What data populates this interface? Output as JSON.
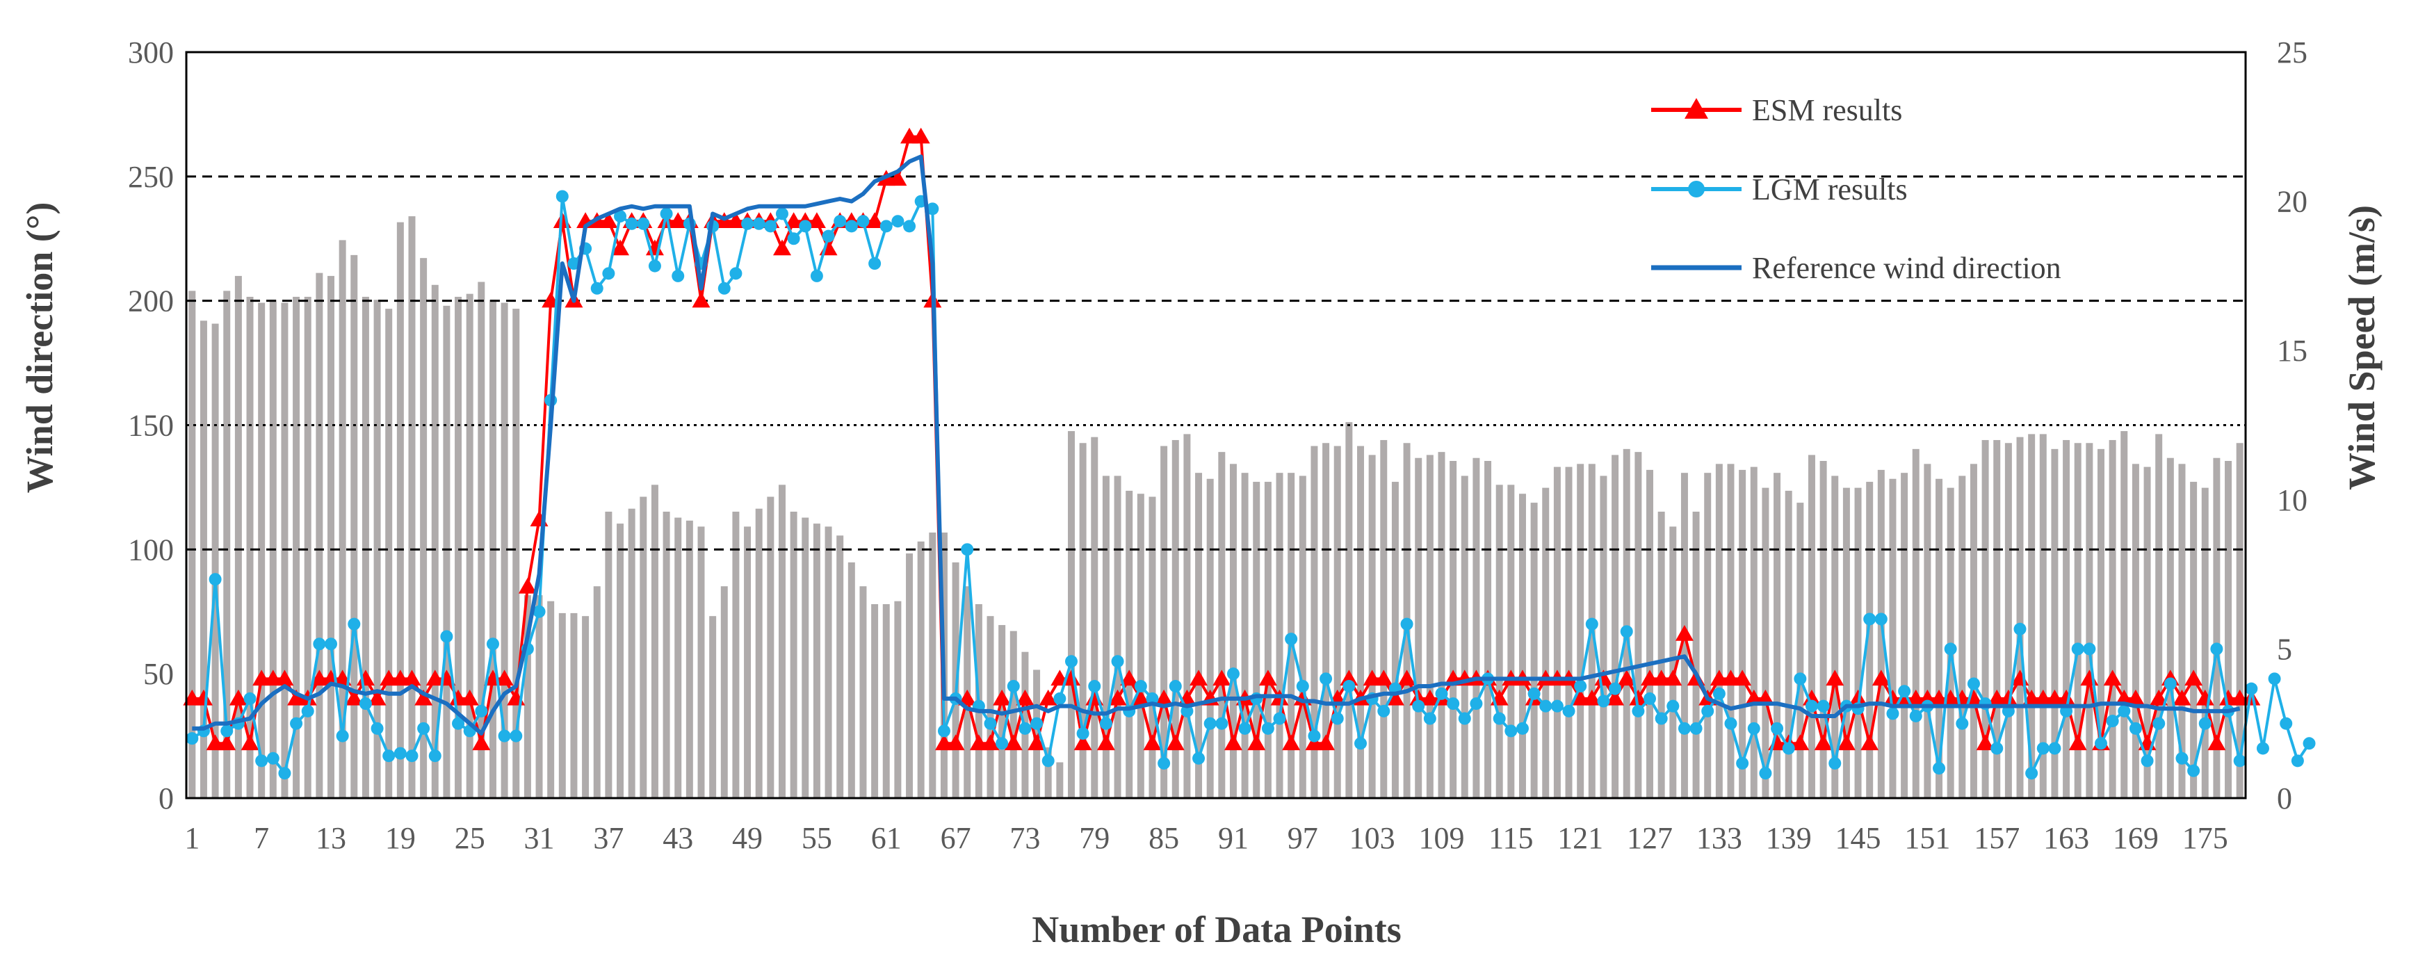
{
  "chart_data": {
    "type": "line",
    "title": "",
    "xlabel": "Number of Data Points",
    "ylabel_left": "Wind direction (°)",
    "ylabel_right": "Wind Speed (m/s)",
    "y_left_lim": [
      0,
      300
    ],
    "y_left_ticks": [
      0,
      50,
      100,
      150,
      200,
      250,
      300
    ],
    "y_right_lim": [
      0,
      25
    ],
    "y_right_ticks": [
      0,
      5,
      10,
      15,
      20,
      25
    ],
    "x_lim": [
      1,
      178
    ],
    "x_ticks": [
      1,
      7,
      13,
      19,
      25,
      31,
      37,
      43,
      49,
      55,
      61,
      67,
      73,
      79,
      85,
      91,
      97,
      103,
      109,
      115,
      121,
      127,
      133,
      139,
      145,
      151,
      157,
      163,
      169,
      175
    ],
    "gridlines": [
      {
        "value": 100,
        "style": "dashed"
      },
      {
        "value": 150,
        "style": "dotted"
      },
      {
        "value": 200,
        "style": "dashed"
      },
      {
        "value": 250,
        "style": "dashed"
      }
    ],
    "legend_position": "top-right",
    "colors": {
      "bars": "#afabab",
      "esm": "#ff0000",
      "lgm": "#1fb0e8",
      "reference": "#1b6fc1",
      "frame": "#000000"
    },
    "bars": {
      "name": "Wind speed",
      "axis": "right",
      "values": [
        17,
        16,
        15.9,
        17,
        17.5,
        16.8,
        16.6,
        16.7,
        16.6,
        16.8,
        16.8,
        17.6,
        17.5,
        18.7,
        18.2,
        16.8,
        16.7,
        16.4,
        19.3,
        19.5,
        18.1,
        17.2,
        16.5,
        16.8,
        16.9,
        17.3,
        16.7,
        16.6,
        16.4,
        6.8,
        6.8,
        6.6,
        6.2,
        6.2,
        6.1,
        7.1,
        9.6,
        9.2,
        9.7,
        10.1,
        10.5,
        9.6,
        9.4,
        9.3,
        9.1,
        6.1,
        7.1,
        9.6,
        9.1,
        9.7,
        10.1,
        10.5,
        9.6,
        9.4,
        9.2,
        9.1,
        8.8,
        7.9,
        7.1,
        6.5,
        6.5,
        6.6,
        8.2,
        8.6,
        8.9,
        8.9,
        7.9,
        7.1,
        6.5,
        6.1,
        5.8,
        5.6,
        4.9,
        4.3,
        1.7,
        1.2,
        12.3,
        11.9,
        12.1,
        10.8,
        10.8,
        10.3,
        10.2,
        10.1,
        11.8,
        12,
        12.2,
        10.9,
        10.7,
        11.6,
        11.2,
        10.9,
        10.6,
        10.6,
        10.9,
        10.9,
        10.8,
        11.8,
        11.9,
        11.8,
        12.6,
        11.8,
        11.5,
        12,
        10.6,
        11.9,
        11.4,
        11.5,
        11.6,
        11.3,
        10.8,
        11.4,
        11.3,
        10.5,
        10.5,
        10.2,
        9.9,
        10.4,
        11.1,
        11.1,
        11.2,
        11.2,
        10.8,
        11.5,
        11.7,
        11.6,
        11,
        9.6,
        9.1,
        10.9,
        9.6,
        10.9,
        11.2,
        11.2,
        11,
        11.1,
        10.4,
        10.9,
        10.3,
        9.9,
        11.5,
        11.3,
        10.8,
        10.4,
        10.4,
        10.6,
        11,
        10.7,
        10.9,
        11.7,
        11.2,
        10.7,
        10.4,
        10.8,
        11.2,
        12,
        12,
        11.9,
        12.1,
        12.2,
        12.2,
        11.7,
        12,
        11.9,
        11.9,
        11.7,
        12,
        12.3,
        11.2,
        11.1,
        12.2,
        11.4,
        11.2,
        10.6,
        10.4,
        11.4,
        11.3,
        11.9
      ]
    },
    "series": [
      {
        "name": "ESM results",
        "axis": "left",
        "marker": "triangle",
        "values": [
          40,
          40,
          22,
          22,
          40,
          22,
          48,
          48,
          48,
          40,
          40,
          48,
          48,
          48,
          40,
          48,
          40,
          48,
          48,
          48,
          40,
          48,
          48,
          40,
          40,
          22,
          48,
          48,
          40,
          85,
          112,
          200,
          232,
          200,
          232,
          232,
          232,
          221,
          232,
          232,
          221,
          232,
          232,
          232,
          200,
          232,
          232,
          232,
          232,
          232,
          232,
          221,
          232,
          232,
          232,
          221,
          232,
          232,
          232,
          232,
          249,
          249,
          266,
          266,
          200,
          22,
          22,
          40,
          22,
          22,
          40,
          22,
          40,
          22,
          40,
          48,
          48,
          22,
          40,
          22,
          40,
          48,
          40,
          22,
          40,
          22,
          40,
          48,
          40,
          48,
          22,
          40,
          22,
          48,
          40,
          22,
          40,
          22,
          22,
          40,
          48,
          40,
          48,
          48,
          40,
          48,
          40,
          40,
          40,
          48,
          48,
          48,
          48,
          40,
          48,
          48,
          40,
          48,
          48,
          48,
          40,
          40,
          48,
          40,
          48,
          40,
          48,
          48,
          48,
          66,
          48,
          40,
          48,
          48,
          48,
          40,
          40,
          22,
          22,
          22,
          40,
          22,
          48,
          22,
          40,
          22,
          48,
          40,
          40,
          40,
          40,
          40,
          40,
          40,
          40,
          22,
          40,
          40,
          48,
          40,
          40,
          40,
          40,
          22,
          48,
          22,
          48,
          40,
          40,
          22,
          40,
          48,
          40,
          48,
          40,
          22,
          40,
          40,
          40
        ]
      },
      {
        "name": "LGM results",
        "axis": "left",
        "marker": "circle",
        "values": [
          24,
          27,
          88,
          27,
          30,
          40,
          15,
          16,
          10,
          30,
          35,
          62,
          62,
          25,
          70,
          38,
          28,
          17,
          18,
          17,
          28,
          17,
          65,
          30,
          27,
          35,
          62,
          25,
          25,
          60,
          75,
          160,
          242,
          215,
          221,
          205,
          211,
          234,
          231,
          231,
          214,
          235,
          210,
          231,
          215,
          230,
          205,
          211,
          231,
          231,
          230,
          235,
          225,
          230,
          210,
          226,
          232,
          230,
          232,
          215,
          230,
          232,
          230,
          240,
          237,
          27,
          40,
          100,
          37,
          30,
          22,
          45,
          28,
          30,
          15,
          40,
          55,
          26,
          45,
          30,
          55,
          35,
          45,
          40,
          14,
          45,
          35,
          16,
          30,
          30,
          50,
          28,
          40,
          28,
          32,
          64,
          45,
          25,
          48,
          32,
          45,
          22,
          40,
          35,
          44,
          70,
          37,
          32,
          42,
          38,
          32,
          38,
          48,
          32,
          27,
          28,
          42,
          37,
          37,
          35,
          45,
          70,
          39,
          44,
          67,
          35,
          40,
          32,
          37,
          28,
          28,
          35,
          42,
          30,
          14,
          28,
          10,
          28,
          20,
          48,
          37,
          37,
          14,
          37,
          36,
          72,
          72,
          34,
          43,
          33,
          37,
          12,
          60,
          30,
          46,
          38,
          20,
          35,
          68,
          10,
          20,
          20,
          35,
          60,
          60,
          22,
          31,
          35,
          28,
          15,
          30,
          46,
          16,
          11,
          30,
          60,
          35,
          15,
          44,
          20,
          48,
          30,
          15,
          22
        ]
      },
      {
        "name": "Reference wind direction",
        "axis": "left",
        "marker": "none",
        "values": [
          28,
          28,
          30,
          30,
          31,
          32,
          38,
          42,
          45,
          42,
          40,
          42,
          46,
          45,
          43,
          42,
          43,
          42,
          42,
          45,
          42,
          40,
          38,
          34,
          30,
          26,
          35,
          42,
          45,
          65,
          90,
          150,
          215,
          200,
          230,
          233,
          235,
          237,
          238,
          237,
          238,
          238,
          238,
          238,
          205,
          235,
          233,
          235,
          237,
          238,
          238,
          238,
          238,
          238,
          239,
          240,
          241,
          240,
          243,
          248,
          250,
          252,
          256,
          258,
          215,
          40,
          40,
          36,
          35,
          35,
          34,
          35,
          36,
          37,
          35,
          37,
          37,
          35,
          34,
          34,
          36,
          36,
          37,
          38,
          37,
          38,
          37,
          38,
          39,
          40,
          40,
          40,
          41,
          41,
          41,
          41,
          39,
          39,
          38,
          38,
          38,
          40,
          41,
          42,
          42,
          43,
          45,
          45,
          46,
          46,
          47,
          48,
          48,
          48,
          48,
          48,
          48,
          48,
          48,
          48,
          48,
          49,
          50,
          51,
          52,
          53,
          54,
          55,
          56,
          57,
          50,
          40,
          38,
          36,
          37,
          38,
          38,
          38,
          37,
          36,
          33,
          33,
          33,
          37,
          37,
          38,
          38,
          37,
          37,
          37,
          37,
          37,
          37,
          37,
          37,
          37,
          37,
          37,
          37,
          37,
          37,
          37,
          37,
          37,
          37,
          38,
          38,
          38,
          37,
          37,
          36,
          36,
          36,
          35,
          35,
          35,
          35,
          36
        ]
      }
    ]
  }
}
